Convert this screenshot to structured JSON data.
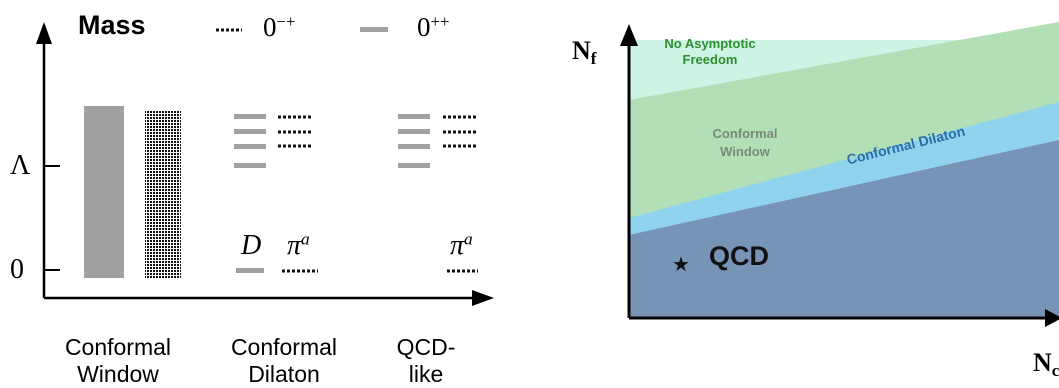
{
  "left": {
    "y_title": "Mass",
    "legend": [
      {
        "style": "dotted",
        "text": "0",
        "sup": "−+"
      },
      {
        "style": "gray",
        "text": "0",
        "sup": "++"
      }
    ],
    "y_ticks": [
      "Λ",
      "0"
    ],
    "x_labels": [
      {
        "line1": "Conformal",
        "line2": "Window"
      },
      {
        "line1": "Conformal",
        "line2": "Dilaton"
      },
      {
        "line1": "QCD-",
        "line2": "like"
      }
    ],
    "annotations": {
      "dilaton": "D",
      "pion_base": "π",
      "pion_sup": "a"
    },
    "colors": {
      "gray": "#a0a0a0",
      "dots": "#111111"
    }
  },
  "right": {
    "y_axis": {
      "base": "N",
      "sub": "f"
    },
    "x_axis": {
      "base": "N",
      "sub": "c"
    },
    "regions": [
      {
        "name": "No Asymptotic Freedom",
        "color": "#cdf3e4",
        "text_color": "#2f8f2f"
      },
      {
        "name": "Conformal Window",
        "color": "#b2dfb6",
        "text_color": "#7a8a7a"
      },
      {
        "name": "Conformal Dilaton",
        "color": "#8fd3ee",
        "text_color": "#2a6fa8"
      },
      {
        "name": "QCD",
        "color": "#7793b5",
        "text_color": "#111111"
      }
    ],
    "regions_text": {
      "naf_line1": "No Asymptotic",
      "naf_line2": "Freedom",
      "cw_line1": "Conformal",
      "cw_line2": "Window",
      "cd": "Conformal Dilaton",
      "qcd": "QCD",
      "star": "★"
    }
  }
}
